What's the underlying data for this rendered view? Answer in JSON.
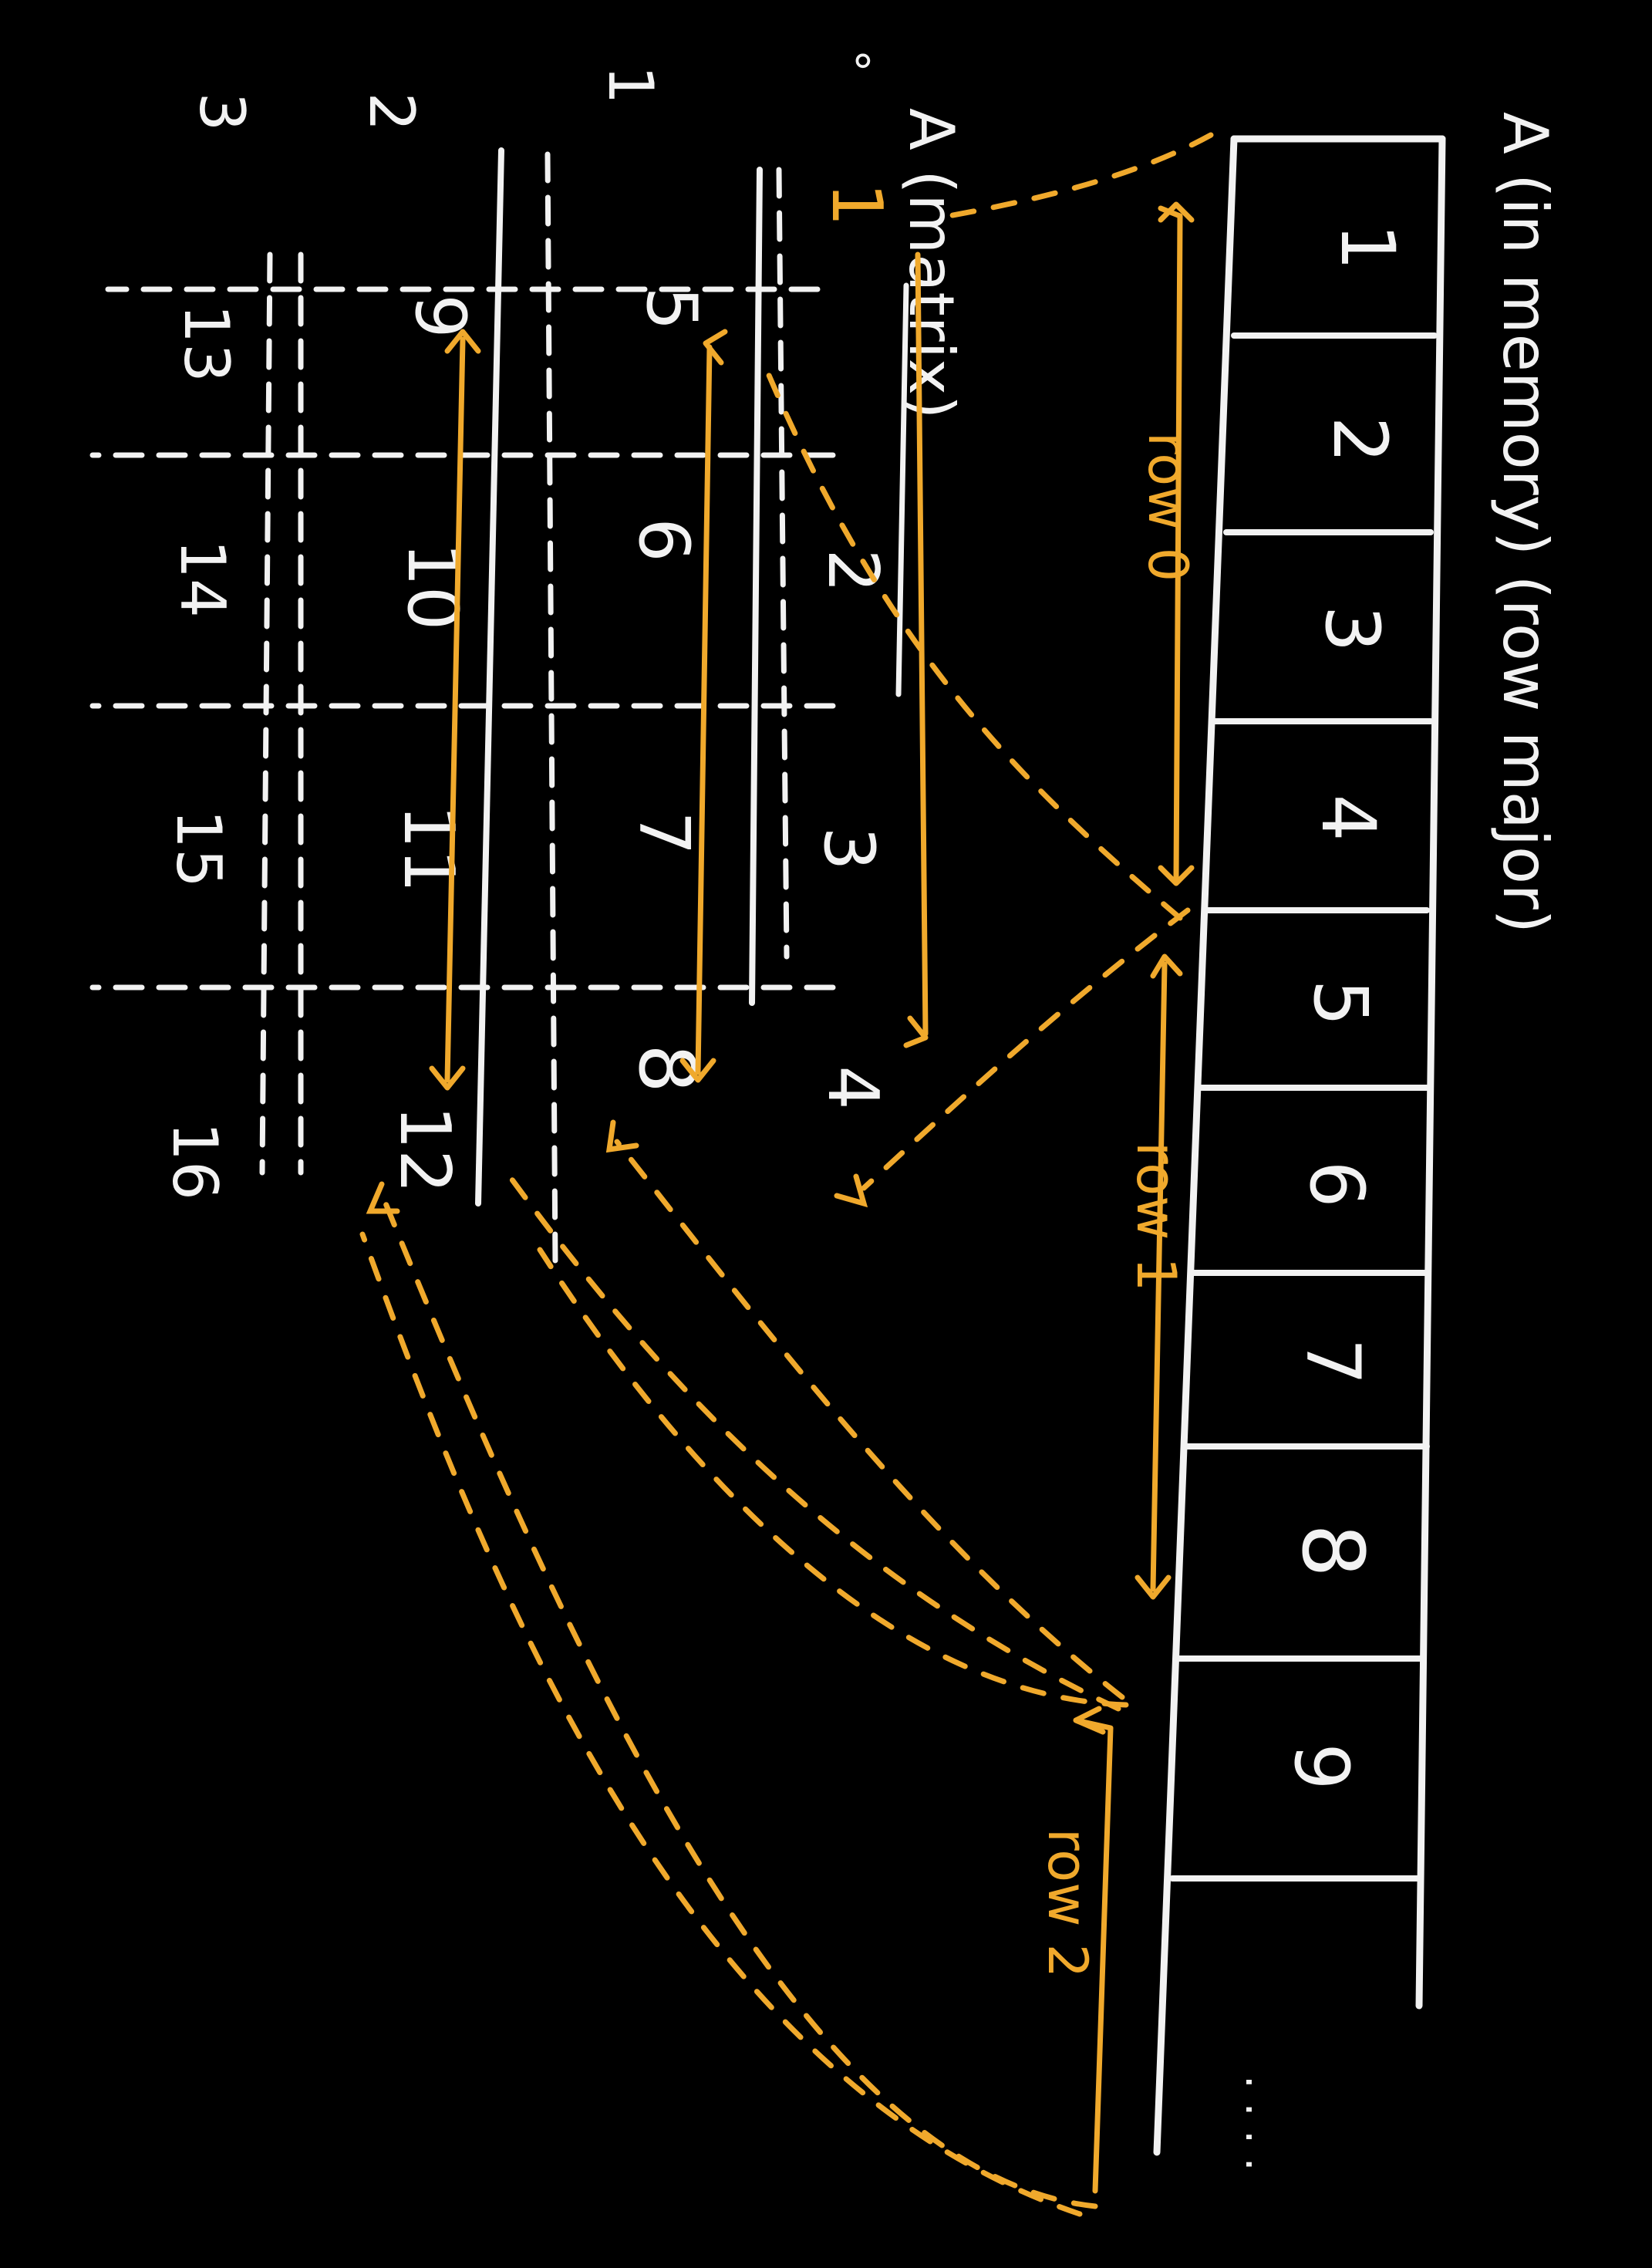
{
  "colors": {
    "background": "#000000",
    "chalk": "#f2f2f2",
    "accent": "#f0a92c"
  },
  "memory": {
    "title": "A (in memory) (row major)",
    "cells": [
      "1",
      "2",
      "3",
      "4",
      "5",
      "6",
      "7",
      "8",
      "9"
    ],
    "ellipsis": "· · · ·"
  },
  "row_labels": [
    "row 0",
    "row 1",
    "row 2"
  ],
  "matrix": {
    "label": "A (matrix)",
    "marker": "∘",
    "col_index": [
      "1",
      "2",
      "3"
    ],
    "rows": [
      [
        "1",
        "2",
        "3",
        "4"
      ],
      [
        "5",
        "6",
        "7",
        "8"
      ],
      [
        "9",
        "10",
        "11",
        "12"
      ],
      [
        "13",
        "14",
        "15",
        "16"
      ]
    ]
  }
}
